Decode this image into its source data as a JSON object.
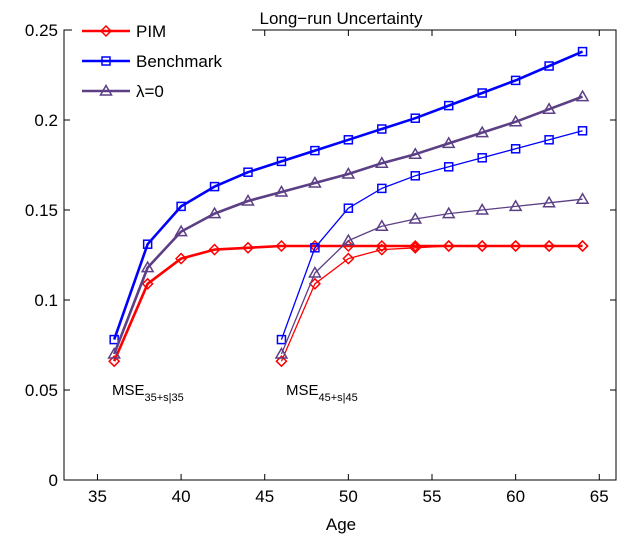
{
  "chart_data": {
    "type": "line",
    "title": "Long−run Uncertainty",
    "xlabel": "Age",
    "ylabel": "",
    "xlim": [
      33,
      66
    ],
    "ylim": [
      0,
      0.25
    ],
    "xticks": [
      "35",
      "40",
      "45",
      "50",
      "55",
      "60",
      "65"
    ],
    "yticks": [
      "0",
      "0.05",
      "0.1",
      "0.15",
      "0.2",
      "0.25"
    ],
    "legend": {
      "position": "top-left",
      "entries": [
        {
          "name": "PIM",
          "color": "#ff0000",
          "marker": "diamond"
        },
        {
          "name": "Benchmark",
          "color": "#0000ff",
          "marker": "square"
        },
        {
          "name": "λ=0",
          "color": "#5c3f85",
          "marker": "triangle"
        }
      ]
    },
    "annotations": [
      {
        "main": "MSE",
        "sub": "35+s|35"
      },
      {
        "main": "MSE",
        "sub": "45+s|45"
      }
    ],
    "series": [
      {
        "name": "PIM",
        "group": "35",
        "color": "#ff0000",
        "marker": "diamond",
        "x": [
          36,
          38,
          40,
          42,
          44,
          46,
          48,
          50,
          52,
          54,
          56,
          58,
          60,
          62,
          64
        ],
        "values": [
          0.066,
          0.109,
          0.123,
          0.128,
          0.129,
          0.13,
          0.13,
          0.13,
          0.13,
          0.13,
          0.13,
          0.13,
          0.13,
          0.13,
          0.13
        ]
      },
      {
        "name": "Benchmark",
        "group": "35",
        "color": "#0000ff",
        "marker": "square",
        "x": [
          36,
          38,
          40,
          42,
          44,
          46,
          48,
          50,
          52,
          54,
          56,
          58,
          60,
          62,
          64
        ],
        "values": [
          0.078,
          0.131,
          0.152,
          0.163,
          0.171,
          0.177,
          0.183,
          0.189,
          0.195,
          0.201,
          0.208,
          0.215,
          0.222,
          0.23,
          0.238
        ]
      },
      {
        "name": "λ=0",
        "group": "35",
        "color": "#5c3f85",
        "marker": "triangle",
        "x": [
          36,
          38,
          40,
          42,
          44,
          46,
          48,
          50,
          52,
          54,
          56,
          58,
          60,
          62,
          64
        ],
        "values": [
          0.07,
          0.118,
          0.138,
          0.148,
          0.155,
          0.16,
          0.165,
          0.17,
          0.176,
          0.181,
          0.187,
          0.193,
          0.199,
          0.206,
          0.213
        ]
      },
      {
        "name": "PIM",
        "group": "45",
        "color": "#ff0000",
        "marker": "diamond",
        "x": [
          46,
          48,
          50,
          52,
          54,
          56,
          58,
          60,
          62,
          64
        ],
        "values": [
          0.066,
          0.109,
          0.123,
          0.128,
          0.129,
          0.13,
          0.13,
          0.13,
          0.13,
          0.13
        ]
      },
      {
        "name": "Benchmark",
        "group": "45",
        "color": "#0000ff",
        "marker": "square",
        "x": [
          46,
          48,
          50,
          52,
          54,
          56,
          58,
          60,
          62,
          64
        ],
        "values": [
          0.078,
          0.129,
          0.151,
          0.162,
          0.169,
          0.174,
          0.179,
          0.184,
          0.189,
          0.194
        ]
      },
      {
        "name": "λ=0",
        "group": "45",
        "color": "#5c3f85",
        "marker": "triangle",
        "x": [
          46,
          48,
          50,
          52,
          54,
          56,
          58,
          60,
          62,
          64
        ],
        "values": [
          0.07,
          0.115,
          0.133,
          0.141,
          0.145,
          0.148,
          0.15,
          0.152,
          0.154,
          0.156
        ]
      }
    ]
  }
}
